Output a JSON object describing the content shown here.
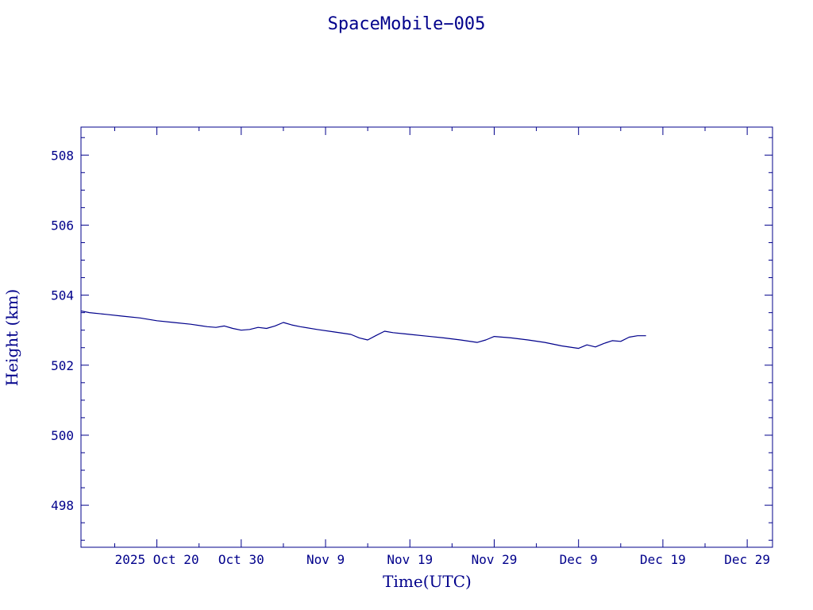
{
  "chart_data": {
    "type": "line",
    "title": "SpaceMobile−005",
    "xlabel": "Time(UTC)",
    "ylabel": "Height (km)",
    "color": "#00008b",
    "xlim": [
      "2025-10-11",
      "2026-01-01"
    ],
    "ylim": [
      496.8,
      508.8
    ],
    "x_ticks": [
      {
        "date": "2025-10-20",
        "label": "2025 Oct 20"
      },
      {
        "date": "2025-10-30",
        "label": "Oct 30"
      },
      {
        "date": "2025-11-09",
        "label": "Nov  9"
      },
      {
        "date": "2025-11-19",
        "label": "Nov 19"
      },
      {
        "date": "2025-11-29",
        "label": "Nov 29"
      },
      {
        "date": "2025-12-09",
        "label": "Dec  9"
      },
      {
        "date": "2025-12-19",
        "label": "Dec 19"
      },
      {
        "date": "2025-12-29",
        "label": "Dec 29"
      }
    ],
    "y_ticks": [
      498,
      500,
      502,
      504,
      506,
      508
    ],
    "series": [
      {
        "x": [
          "2025-10-11",
          "2025-10-12",
          "2025-10-14",
          "2025-10-16",
          "2025-10-18",
          "2025-10-20",
          "2025-10-22",
          "2025-10-24",
          "2025-10-26",
          "2025-10-27",
          "2025-10-28",
          "2025-10-29",
          "2025-10-30",
          "2025-10-31",
          "2025-11-01",
          "2025-11-02",
          "2025-11-03",
          "2025-11-04",
          "2025-11-05",
          "2025-11-06",
          "2025-11-08",
          "2025-11-10",
          "2025-11-12",
          "2025-11-13",
          "2025-11-14",
          "2025-11-15",
          "2025-11-16",
          "2025-11-17",
          "2025-11-19",
          "2025-11-21",
          "2025-11-23",
          "2025-11-25",
          "2025-11-27",
          "2025-11-28",
          "2025-11-29",
          "2025-12-01",
          "2025-12-03",
          "2025-12-05",
          "2025-12-07",
          "2025-12-09",
          "2025-12-10",
          "2025-12-11",
          "2025-12-12",
          "2025-12-13",
          "2025-12-14",
          "2025-12-15",
          "2025-12-16",
          "2025-12-17"
        ],
        "y": [
          503.55,
          503.5,
          503.45,
          503.4,
          503.35,
          503.27,
          503.22,
          503.17,
          503.1,
          503.08,
          503.12,
          503.05,
          503.0,
          503.02,
          503.08,
          503.05,
          503.12,
          503.22,
          503.15,
          503.1,
          503.02,
          502.95,
          502.88,
          502.78,
          502.72,
          502.85,
          502.97,
          502.93,
          502.88,
          502.83,
          502.78,
          502.72,
          502.65,
          502.72,
          502.82,
          502.78,
          502.72,
          502.65,
          502.55,
          502.48,
          502.58,
          502.52,
          502.62,
          502.7,
          502.68,
          502.8,
          502.84,
          502.84
        ]
      }
    ]
  }
}
